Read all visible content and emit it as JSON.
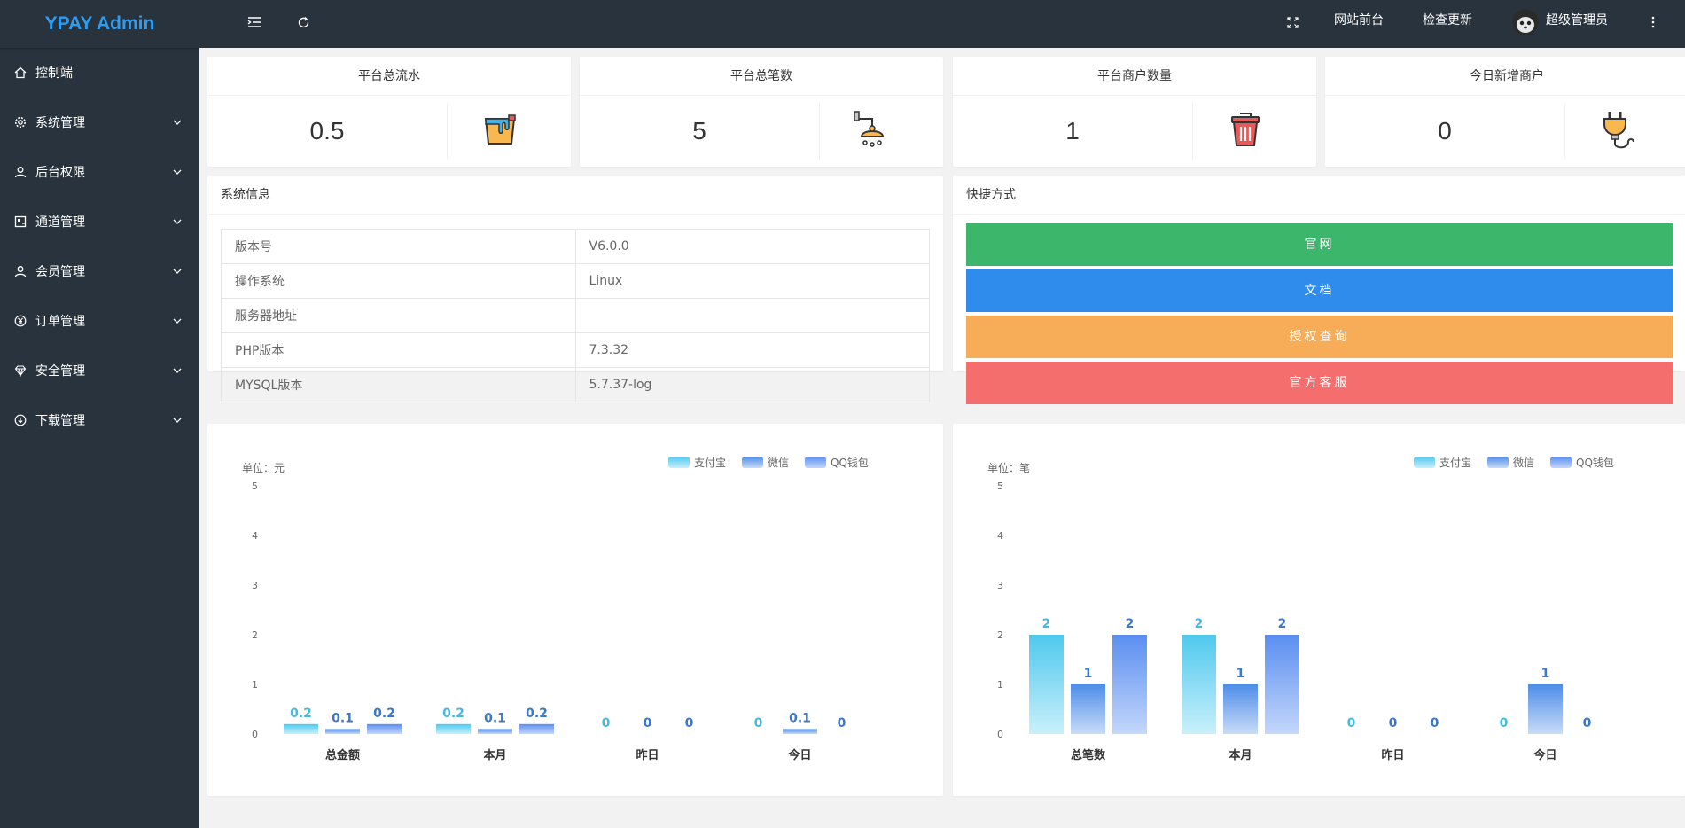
{
  "app": {
    "logo": "YPAY Admin"
  },
  "sidebar": {
    "items": [
      {
        "label": "控制端",
        "icon": "home-icon",
        "expandable": false
      },
      {
        "label": "系统管理",
        "icon": "gear-icon",
        "expandable": true
      },
      {
        "label": "后台权限",
        "icon": "user-icon",
        "expandable": true
      },
      {
        "label": "通道管理",
        "icon": "channel-icon",
        "expandable": true
      },
      {
        "label": "会员管理",
        "icon": "member-icon",
        "expandable": true
      },
      {
        "label": "订单管理",
        "icon": "yen-icon",
        "expandable": true
      },
      {
        "label": "安全管理",
        "icon": "diamond-icon",
        "expandable": true
      },
      {
        "label": "下载管理",
        "icon": "download-icon",
        "expandable": true
      }
    ]
  },
  "topbar": {
    "site_front": "网站前台",
    "check_update": "检查更新",
    "username": "超级管理员"
  },
  "stats": [
    {
      "title": "平台总流水",
      "value": "0.5",
      "icon": "paint-bucket-icon"
    },
    {
      "title": "平台总笔数",
      "value": "5",
      "icon": "shower-icon"
    },
    {
      "title": "平台商户数量",
      "value": "1",
      "icon": "trash-can-icon"
    },
    {
      "title": "今日新增商户",
      "value": "0",
      "icon": "plug-icon"
    }
  ],
  "system_info": {
    "title": "系统信息",
    "rows": [
      {
        "label": "版本号",
        "value": "V6.0.0"
      },
      {
        "label": "操作系统",
        "value": "Linux"
      },
      {
        "label": "服务器地址",
        "value": ""
      },
      {
        "label": "PHP版本",
        "value": "7.3.32"
      },
      {
        "label": "MYSQL版本",
        "value": "5.7.37-log"
      }
    ]
  },
  "quick_links": {
    "title": "快捷方式",
    "buttons": [
      {
        "label": "官网",
        "color": "#3bb66a"
      },
      {
        "label": "文档",
        "color": "#2f8ced"
      },
      {
        "label": "授权查询",
        "color": "#f7ad57"
      },
      {
        "label": "官方客服",
        "color": "#f46e6e"
      }
    ]
  },
  "chart_data": [
    {
      "type": "bar",
      "unit_label": "单位：元",
      "categories": [
        "总金额",
        "本月",
        "昨日",
        "今日"
      ],
      "ylim": [
        0,
        5
      ],
      "yticks": [
        "0",
        "1",
        "2",
        "3",
        "4",
        "5"
      ],
      "series": [
        {
          "name": "支付宝",
          "values": [
            0.2,
            0.2,
            0,
            0
          ],
          "labels": [
            "0.2",
            "0.2",
            "0",
            "0"
          ],
          "color_top": "#4fc9ee",
          "color_bottom": "#c9f0fb",
          "label_color": "#47b8e0"
        },
        {
          "name": "微信",
          "values": [
            0.1,
            0.1,
            0,
            0.1
          ],
          "labels": [
            "0.1",
            "0.1",
            "0",
            "0.1"
          ],
          "color_top": "#4e8de8",
          "color_bottom": "#c9dcf7",
          "label_color": "#3a78c9"
        },
        {
          "name": "QQ钱包",
          "values": [
            0.2,
            0.2,
            0,
            0
          ],
          "labels": [
            "0.2",
            "0.2",
            "0",
            "0"
          ],
          "color_top": "#5a8ef0",
          "color_bottom": "#c4d7fb",
          "label_color": "#3a78c9"
        }
      ]
    },
    {
      "type": "bar",
      "unit_label": "单位：笔",
      "categories": [
        "总笔数",
        "本月",
        "昨日",
        "今日"
      ],
      "ylim": [
        0,
        5
      ],
      "yticks": [
        "0",
        "1",
        "2",
        "3",
        "4",
        "5"
      ],
      "series": [
        {
          "name": "支付宝",
          "values": [
            2,
            2,
            0,
            0
          ],
          "labels": [
            "2",
            "2",
            "0",
            "0"
          ],
          "color_top": "#4fc9ee",
          "color_bottom": "#c9f0fb",
          "label_color": "#47b8e0"
        },
        {
          "name": "微信",
          "values": [
            1,
            1,
            0,
            1
          ],
          "labels": [
            "1",
            "1",
            "0",
            "1"
          ],
          "color_top": "#4e8de8",
          "color_bottom": "#c9dcf7",
          "label_color": "#3a78c9"
        },
        {
          "name": "QQ钱包",
          "values": [
            2,
            2,
            0,
            0
          ],
          "labels": [
            "2",
            "2",
            "0",
            "0"
          ],
          "color_top": "#5a8ef0",
          "color_bottom": "#c4d7fb",
          "label_color": "#3a78c9"
        }
      ]
    }
  ]
}
